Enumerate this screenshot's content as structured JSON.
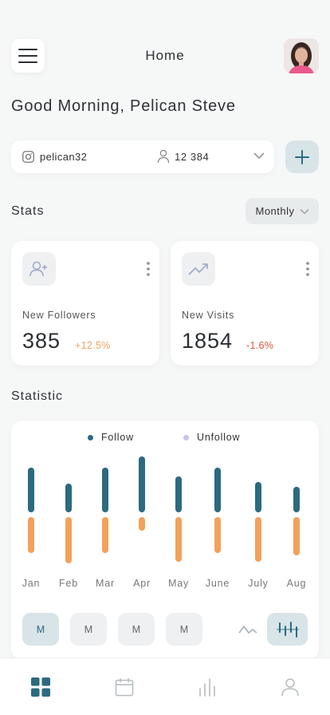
{
  "header": {
    "title": "Home",
    "menu_icon": "hamburger-menu-icon",
    "avatar_icon": "user-avatar"
  },
  "greeting": "Good Morning, Pelican Steve",
  "account": {
    "handle": "pelican32",
    "followers": "12 384",
    "platform_icon": "instagram-icon"
  },
  "stats": {
    "title": "Stats",
    "period": "Monthly",
    "cards": [
      {
        "label": "New Followers",
        "value": "385",
        "change": "+12.5%",
        "change_color": "#f0a060"
      },
      {
        "label": "New Visits",
        "value": "1854",
        "change": "-1.6%",
        "change_color": "#e0533a"
      }
    ]
  },
  "statistic": {
    "title": "Statistic",
    "range_buttons": [
      "M",
      "M",
      "M",
      "M"
    ],
    "active_range_index": 0,
    "active_view": "bar"
  },
  "chart_data": {
    "type": "bar",
    "categories": [
      "Jan",
      "Feb",
      "Mar",
      "Apr",
      "May",
      "June",
      "July",
      "Aug"
    ],
    "legend": [
      "Follow",
      "Unfollow"
    ],
    "series": [
      {
        "name": "Follow",
        "color": "#2c6a80",
        "values": [
          56,
          36,
          56,
          70,
          45,
          56,
          38,
          32
        ]
      },
      {
        "name": "Unfollow",
        "color": "#f3a15b",
        "values": [
          45,
          58,
          45,
          17,
          56,
          45,
          56,
          48
        ]
      }
    ],
    "note": "diverging bars; Follow above and Unfollow below a common baseline; no y-axis",
    "grid": false,
    "legend_position": "top-center"
  },
  "colors": {
    "accent": "#2c6a80",
    "orange": "#f3a15b",
    "legend_unfollow": "#c9c3e8"
  }
}
